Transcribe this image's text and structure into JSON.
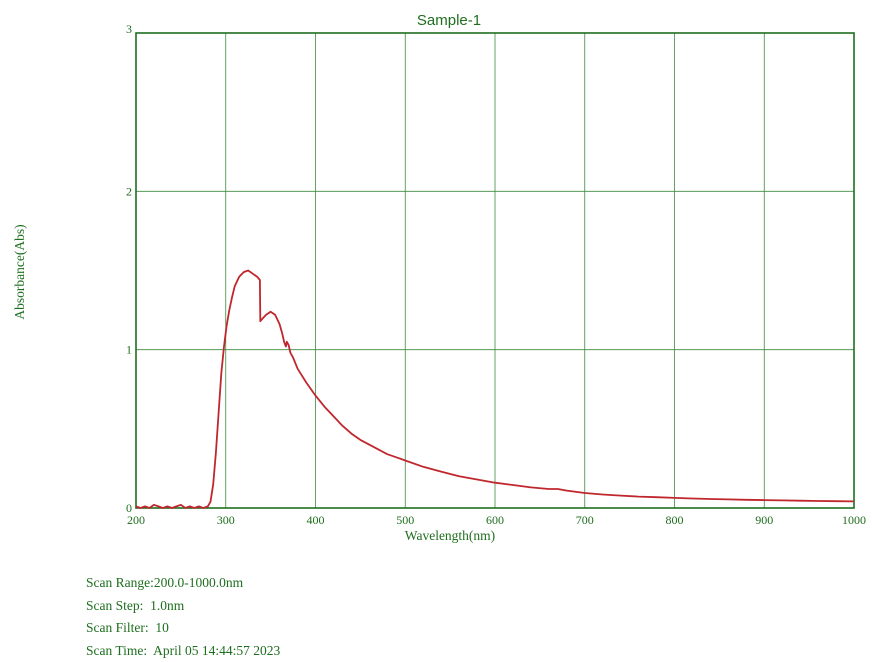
{
  "chart_data": {
    "type": "line",
    "title": "Sample-1",
    "xlabel": "Wavelength(nm)",
    "ylabel": "Absorbance(Abs)",
    "xlim": [
      200,
      1000
    ],
    "ylim": [
      0,
      3
    ],
    "x_ticks": [
      "200",
      "300",
      "400",
      "500",
      "600",
      "700",
      "800",
      "900",
      "1000"
    ],
    "y_ticks": [
      "0",
      "1",
      "2",
      "3"
    ],
    "grid": true,
    "series": [
      {
        "color": "#c0272d",
        "x": [
          200,
          205,
          210,
          215,
          220,
          225,
          230,
          235,
          240,
          245,
          250,
          255,
          260,
          265,
          270,
          275,
          280,
          283,
          286,
          289,
          292,
          295,
          298,
          301,
          304,
          307,
          310,
          315,
          320,
          325,
          330,
          335,
          338,
          338.5,
          340,
          345,
          350,
          355,
          360,
          363,
          365,
          367,
          368,
          370,
          372,
          375,
          380,
          390,
          400,
          410,
          420,
          430,
          440,
          450,
          460,
          470,
          480,
          490,
          500,
          520,
          540,
          560,
          580,
          600,
          620,
          640,
          660,
          670,
          680,
          700,
          720,
          740,
          760,
          780,
          800,
          820,
          840,
          860,
          880,
          900,
          920,
          940,
          960,
          980,
          1000
        ],
        "y": [
          0.01,
          0.0,
          0.01,
          0.0,
          0.02,
          0.01,
          0.0,
          0.01,
          0.0,
          0.01,
          0.02,
          0.0,
          0.01,
          0.0,
          0.01,
          0.0,
          0.01,
          0.04,
          0.15,
          0.35,
          0.6,
          0.85,
          1.02,
          1.15,
          1.25,
          1.33,
          1.4,
          1.46,
          1.49,
          1.5,
          1.48,
          1.46,
          1.44,
          1.18,
          1.19,
          1.22,
          1.24,
          1.22,
          1.16,
          1.1,
          1.05,
          1.02,
          1.05,
          1.03,
          0.98,
          0.95,
          0.88,
          0.79,
          0.71,
          0.64,
          0.58,
          0.52,
          0.47,
          0.43,
          0.4,
          0.37,
          0.34,
          0.32,
          0.3,
          0.26,
          0.23,
          0.2,
          0.18,
          0.16,
          0.145,
          0.13,
          0.12,
          0.12,
          0.11,
          0.095,
          0.085,
          0.078,
          0.072,
          0.068,
          0.064,
          0.06,
          0.057,
          0.054,
          0.052,
          0.05,
          0.048,
          0.046,
          0.044,
          0.043,
          0.042
        ]
      }
    ]
  },
  "scan_info": [
    "Scan Range:200.0-1000.0nm",
    "Scan Step:  1.0nm",
    "Scan Filter:  10",
    "Scan Time:  April 05 14:44:57 2023"
  ]
}
